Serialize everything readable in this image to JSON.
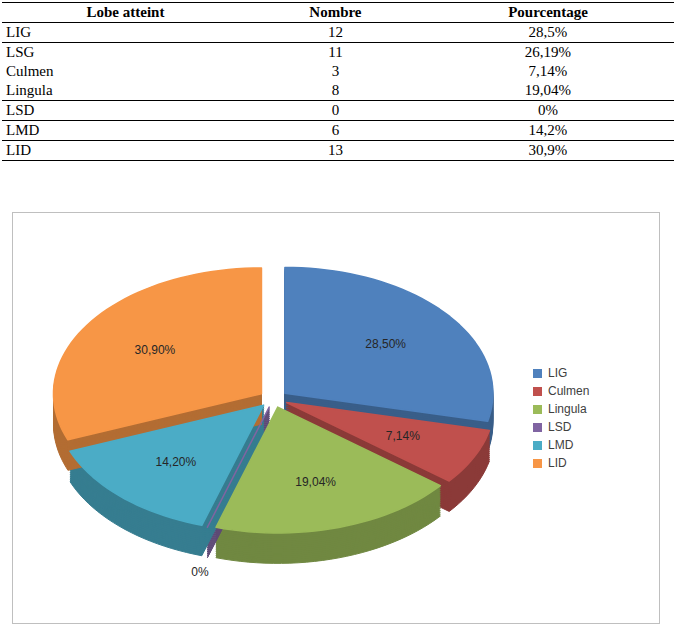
{
  "table": {
    "header": [
      "Lobe atteint",
      "Nombre",
      "Pourcentage"
    ],
    "rows": [
      [
        "LIG",
        "12",
        "28,5%"
      ],
      [
        "LSG",
        "11",
        "26,19%"
      ],
      [
        "Culmen",
        "3",
        "7,14%"
      ],
      [
        "Lingula",
        "8",
        "19,04%"
      ],
      [
        "LSD",
        "0",
        "0%"
      ],
      [
        "LMD",
        "6",
        "14,2%"
      ],
      [
        "LID",
        "13",
        "30,9%"
      ]
    ]
  },
  "chart_data": {
    "type": "pie",
    "categories": [
      "LIG",
      "Culmen",
      "Lingula",
      "LSD",
      "LMD",
      "LID"
    ],
    "values": [
      28.5,
      7.14,
      19.04,
      0,
      14.2,
      30.9
    ],
    "value_labels": [
      "28,50%",
      "7,14%",
      "19,04%",
      "0%",
      "14,20%",
      "30,90%"
    ],
    "colors": [
      "#4f81bd",
      "#c0504d",
      "#9bbb59",
      "#8064a2",
      "#4bacc6",
      "#f79646"
    ],
    "data_labels": true,
    "legend": "right"
  }
}
